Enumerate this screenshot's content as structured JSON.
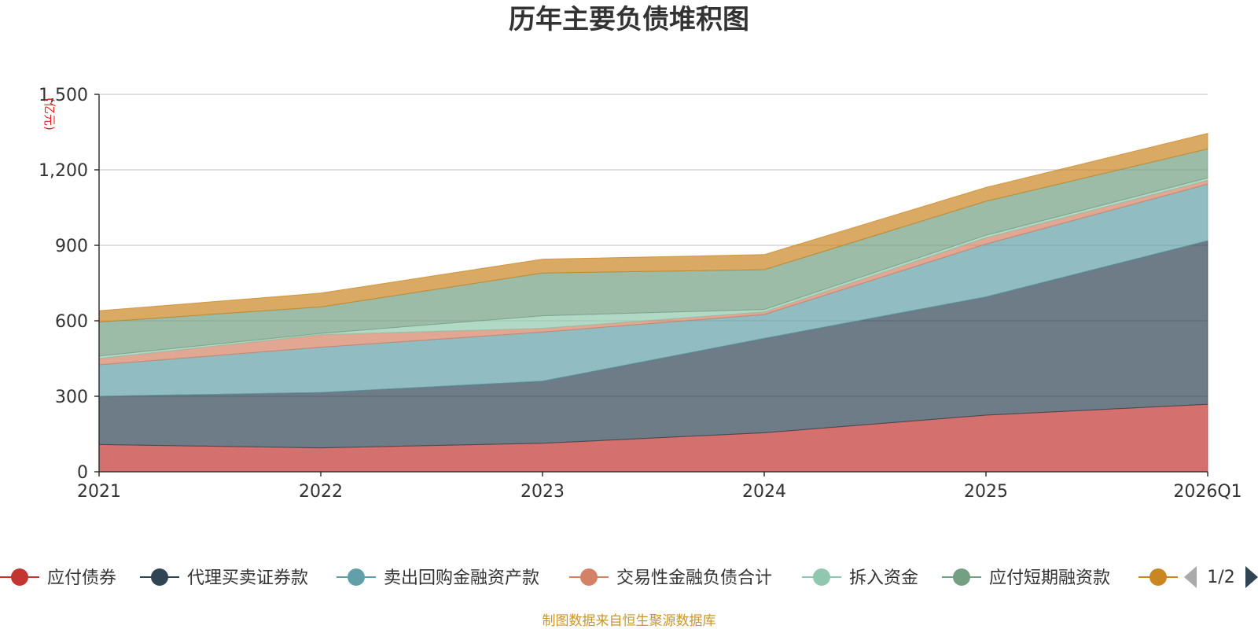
{
  "source_note": "制图数据来自恒生聚源数据库",
  "legend_page": "1/2",
  "chart_data": {
    "type": "area",
    "stacked": true,
    "title": "历年主要负债堆积图",
    "ylabel": "(亿元)",
    "xlabel": "",
    "categories": [
      "2021",
      "2022",
      "2023",
      "2024",
      "2025",
      "2026Q1"
    ],
    "ylim": [
      0,
      1500
    ],
    "yticks": [
      0,
      300,
      600,
      900,
      1200,
      1500
    ],
    "ytick_labels": [
      "0",
      "300",
      "600",
      "900",
      "1,200",
      "1,500"
    ],
    "grid": true,
    "series": [
      {
        "name": "应付债券",
        "color": "#c23531",
        "values": [
          108,
          95,
          113,
          155,
          225,
          268
        ]
      },
      {
        "name": "代理买卖证券款",
        "color": "#2f4554",
        "values": [
          192,
          220,
          247,
          375,
          470,
          650
        ]
      },
      {
        "name": "卖出回购金融资产款",
        "color": "#61a0a8",
        "values": [
          125,
          180,
          195,
          95,
          210,
          225
        ]
      },
      {
        "name": "交易性金融负债合计",
        "color": "#d48265",
        "values": [
          25,
          50,
          15,
          10,
          25,
          15
        ]
      },
      {
        "name": "拆入资金",
        "color": "#91c7ae",
        "values": [
          10,
          5,
          50,
          10,
          10,
          10
        ]
      },
      {
        "name": "应付短期融资款",
        "color": "#749f83",
        "values": [
          135,
          105,
          170,
          158,
          135,
          115
        ]
      },
      {
        "name": "",
        "color": "#ca8622",
        "values": [
          45,
          55,
          55,
          60,
          55,
          62
        ]
      }
    ]
  }
}
